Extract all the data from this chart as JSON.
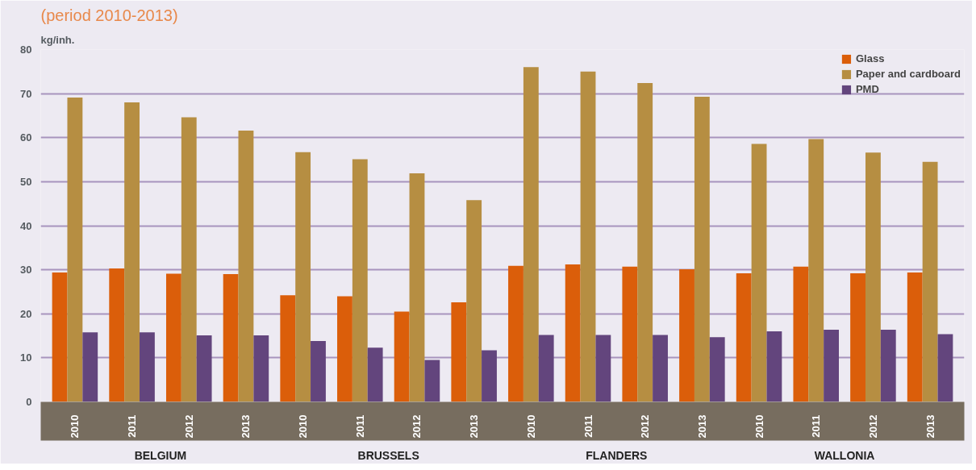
{
  "chart_data": {
    "type": "bar",
    "title": "(period 2010-2013)",
    "ylabel": "kg/inh.",
    "categories": [
      "2010",
      "2011",
      "2012",
      "2013",
      "2010",
      "2011",
      "2012",
      "2013",
      "2010",
      "2011",
      "2012",
      "2013",
      "2010",
      "2011",
      "2012",
      "2013"
    ],
    "annotations": [
      "BELGIUM",
      "BRUSSELS",
      "FLANDERS",
      "WALLONIA"
    ],
    "series": [
      {
        "name": "Glass",
        "color": "#db5e0a",
        "values": [
          29.4,
          30.3,
          29.1,
          29.0,
          24.2,
          24.0,
          20.5,
          22.6,
          30.9,
          31.2,
          30.7,
          30.1,
          29.2,
          30.7,
          29.2,
          29.4
        ]
      },
      {
        "name": "Paper and cardboard",
        "color": "#b68e42",
        "values": [
          69.1,
          68.0,
          64.6,
          61.6,
          56.7,
          55.1,
          51.9,
          45.8,
          76.0,
          75.0,
          72.4,
          69.3,
          58.6,
          59.7,
          56.6,
          54.5
        ]
      },
      {
        "name": "PMD",
        "color": "#63457d",
        "values": [
          15.8,
          15.8,
          15.1,
          15.1,
          13.8,
          12.3,
          9.5,
          11.7,
          15.2,
          15.2,
          15.2,
          14.7,
          16.0,
          16.4,
          16.4,
          15.4
        ]
      }
    ],
    "ylim": [
      0,
      80
    ],
    "yticks": [
      0,
      10,
      20,
      30,
      40,
      50,
      60,
      70,
      80
    ],
    "grid": "y",
    "legend": "top right"
  }
}
